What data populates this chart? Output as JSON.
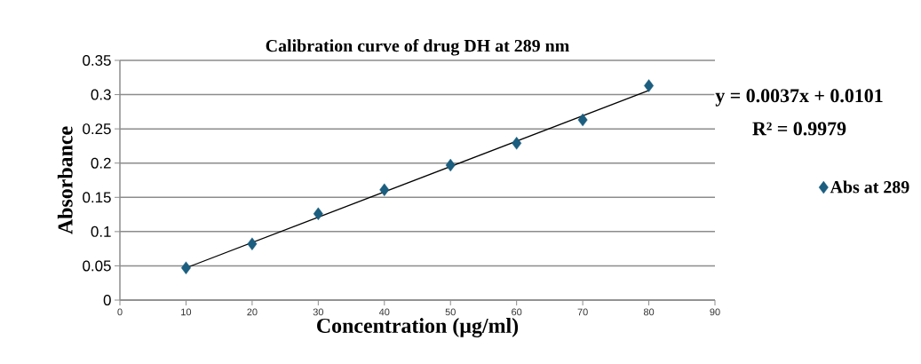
{
  "chart_data": {
    "type": "scatter",
    "title": "Calibration curve of drug DH at 289 nm",
    "xlabel": "Concentration (µg/ml)",
    "ylabel": "Absorbance",
    "xlim": [
      0,
      90
    ],
    "xticks": [
      0,
      10,
      20,
      30,
      40,
      50,
      60,
      70,
      80,
      90
    ],
    "ylim": [
      0,
      0.35
    ],
    "yticks": [
      0,
      0.05,
      0.1,
      0.15,
      0.2,
      0.25,
      0.3,
      0.35
    ],
    "grid": "y",
    "legend": "right",
    "marker": "diamond",
    "annotations": [
      "y = 0.0037x + 0.0101",
      "R² = 0.9979"
    ],
    "series": [
      {
        "name": "Abs at 289",
        "color": "#1b5e7f",
        "x": [
          10,
          20,
          30,
          40,
          50,
          60,
          70,
          80
        ],
        "values": [
          0.047,
          0.082,
          0.126,
          0.161,
          0.197,
          0.229,
          0.263,
          0.313
        ]
      },
      {
        "type": "line",
        "color": "#000000",
        "marker": "none",
        "x": [
          10,
          80
        ],
        "values": [
          0.047,
          0.306
        ]
      }
    ]
  }
}
